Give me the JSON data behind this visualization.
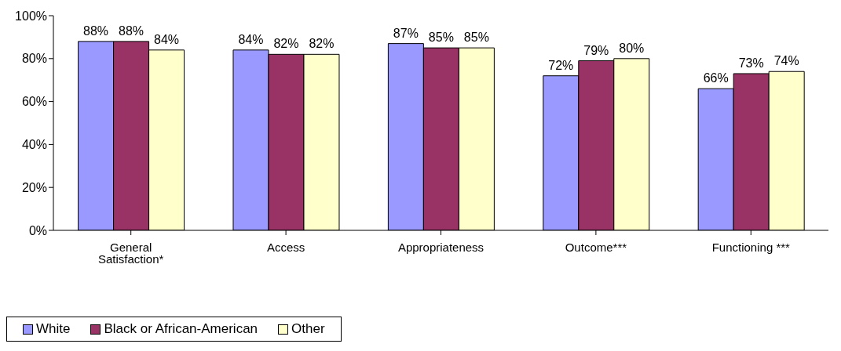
{
  "chart_data": {
    "type": "bar",
    "categories": [
      "General Satisfaction*",
      "Access",
      "Appropriateness",
      "Outcome***",
      "Functioning ***"
    ],
    "series": [
      {
        "name": "White",
        "color": "#9999ff",
        "values": [
          88,
          84,
          87,
          72,
          66
        ],
        "value_labels": [
          "88%",
          "84%",
          "87%",
          "72%",
          "66%"
        ]
      },
      {
        "name": "Black or African-American",
        "color": "#993366",
        "values": [
          88,
          82,
          85,
          79,
          73
        ],
        "value_labels": [
          "88%",
          "82%",
          "85%",
          "79%",
          "73%"
        ]
      },
      {
        "name": "Other",
        "color": "#ffffcc",
        "values": [
          84,
          82,
          85,
          80,
          74
        ],
        "value_labels": [
          "84%",
          "82%",
          "85%",
          "80%",
          "74%"
        ]
      }
    ],
    "ylim": [
      0,
      100
    ],
    "yticks": [
      {
        "value": 0,
        "label": "0%"
      },
      {
        "value": 20,
        "label": "20%"
      },
      {
        "value": 40,
        "label": "40%"
      },
      {
        "value": 60,
        "label": "60%"
      },
      {
        "value": 80,
        "label": "80%"
      },
      {
        "value": 100,
        "label": "100%"
      }
    ],
    "legend": "bottom"
  }
}
